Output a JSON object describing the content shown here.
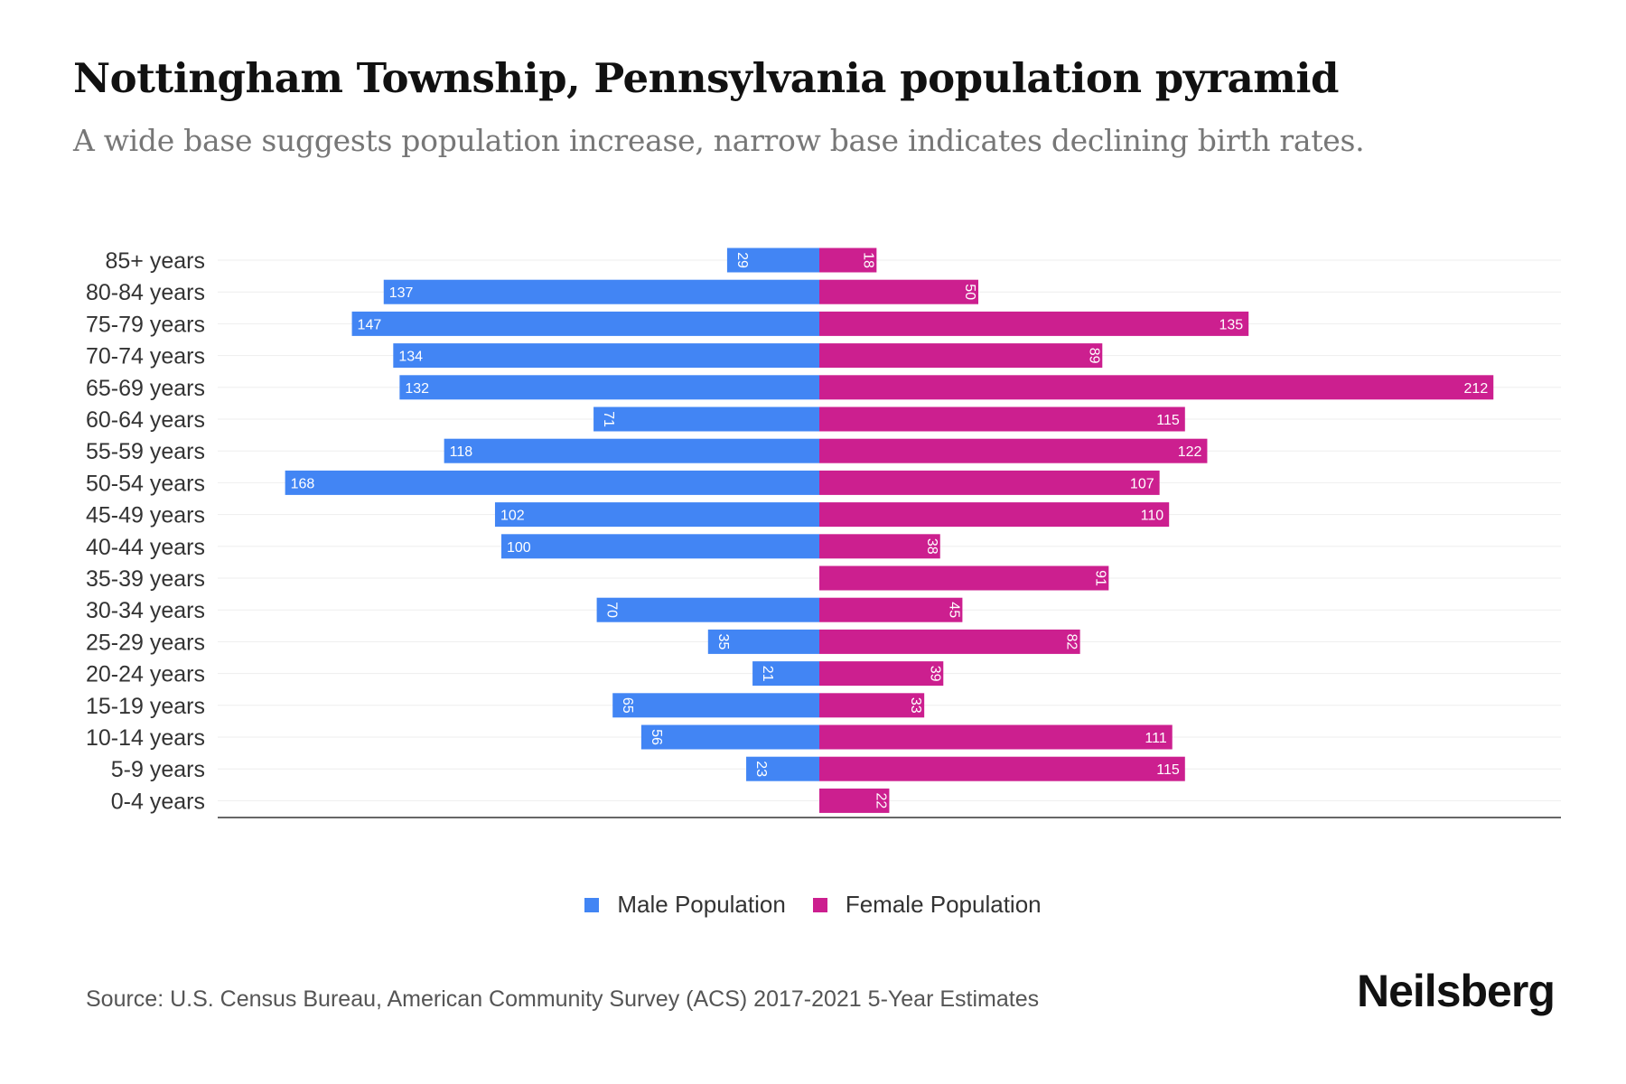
{
  "title": "Nottingham Township, Pennsylvania population pyramid",
  "subtitle": "A wide base suggests population increase, narrow base indicates declining birth rates.",
  "source": "Source: U.S. Census Bureau, American Community Survey (ACS) 2017-2021 5-Year Estimates",
  "logo": "Neilsberg",
  "colors": {
    "male": "#4285f4",
    "female": "#cc1f8f"
  },
  "chart_data": {
    "type": "bar",
    "orientation": "horizontal-pyramid",
    "categories": [
      "85+ years",
      "80-84 years",
      "75-79 years",
      "70-74 years",
      "65-69 years",
      "60-64 years",
      "55-59 years",
      "50-54 years",
      "45-49 years",
      "40-44 years",
      "35-39 years",
      "30-34 years",
      "25-29 years",
      "20-24 years",
      "15-19 years",
      "10-14 years",
      "5-9 years",
      "0-4 years"
    ],
    "series": [
      {
        "name": "Male Population",
        "values": [
          29,
          137,
          147,
          134,
          132,
          71,
          118,
          168,
          102,
          100,
          0,
          70,
          35,
          21,
          65,
          56,
          23,
          0
        ]
      },
      {
        "name": "Female Population",
        "values": [
          18,
          50,
          135,
          89,
          212,
          115,
          122,
          107,
          110,
          38,
          91,
          45,
          82,
          39,
          33,
          111,
          115,
          22
        ]
      }
    ],
    "legend": [
      "Male Population",
      "Female Population"
    ],
    "legend_position": "bottom",
    "grid": true
  }
}
